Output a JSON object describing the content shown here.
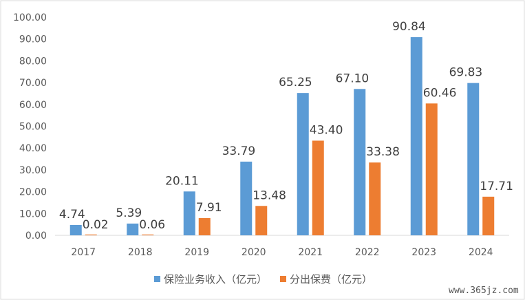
{
  "chart_data": {
    "type": "bar",
    "categories": [
      "2017",
      "2018",
      "2019",
      "2020",
      "2021",
      "2022",
      "2023",
      "2024"
    ],
    "series": [
      {
        "name": "保险业务收入（亿元）",
        "values": [
          4.74,
          5.39,
          20.11,
          33.79,
          65.25,
          67.1,
          90.84,
          69.83
        ],
        "labels": [
          "4.74",
          "5.39",
          "20.11",
          "33.79",
          "65.25",
          "67.10",
          "90.84",
          "69.83"
        ],
        "color": "#5B9BD5"
      },
      {
        "name": "分出保费（亿元）",
        "values": [
          0.02,
          0.06,
          7.91,
          13.48,
          43.4,
          33.38,
          60.46,
          17.71
        ],
        "labels": [
          "0.02",
          "0.06",
          "7.91",
          "13.48",
          "43.40",
          "33.38",
          "60.46",
          "17.71"
        ],
        "color": "#ED7D31"
      }
    ],
    "yticks": [
      "0.00",
      "10.00",
      "20.00",
      "30.00",
      "40.00",
      "50.00",
      "60.00",
      "70.00",
      "80.00",
      "90.00",
      "100.00"
    ],
    "ylim": [
      0,
      100
    ],
    "grid": false,
    "legend": "bottom-center",
    "title": "",
    "xlabel": "",
    "ylabel": ""
  },
  "watermark": "www.365jz.com"
}
